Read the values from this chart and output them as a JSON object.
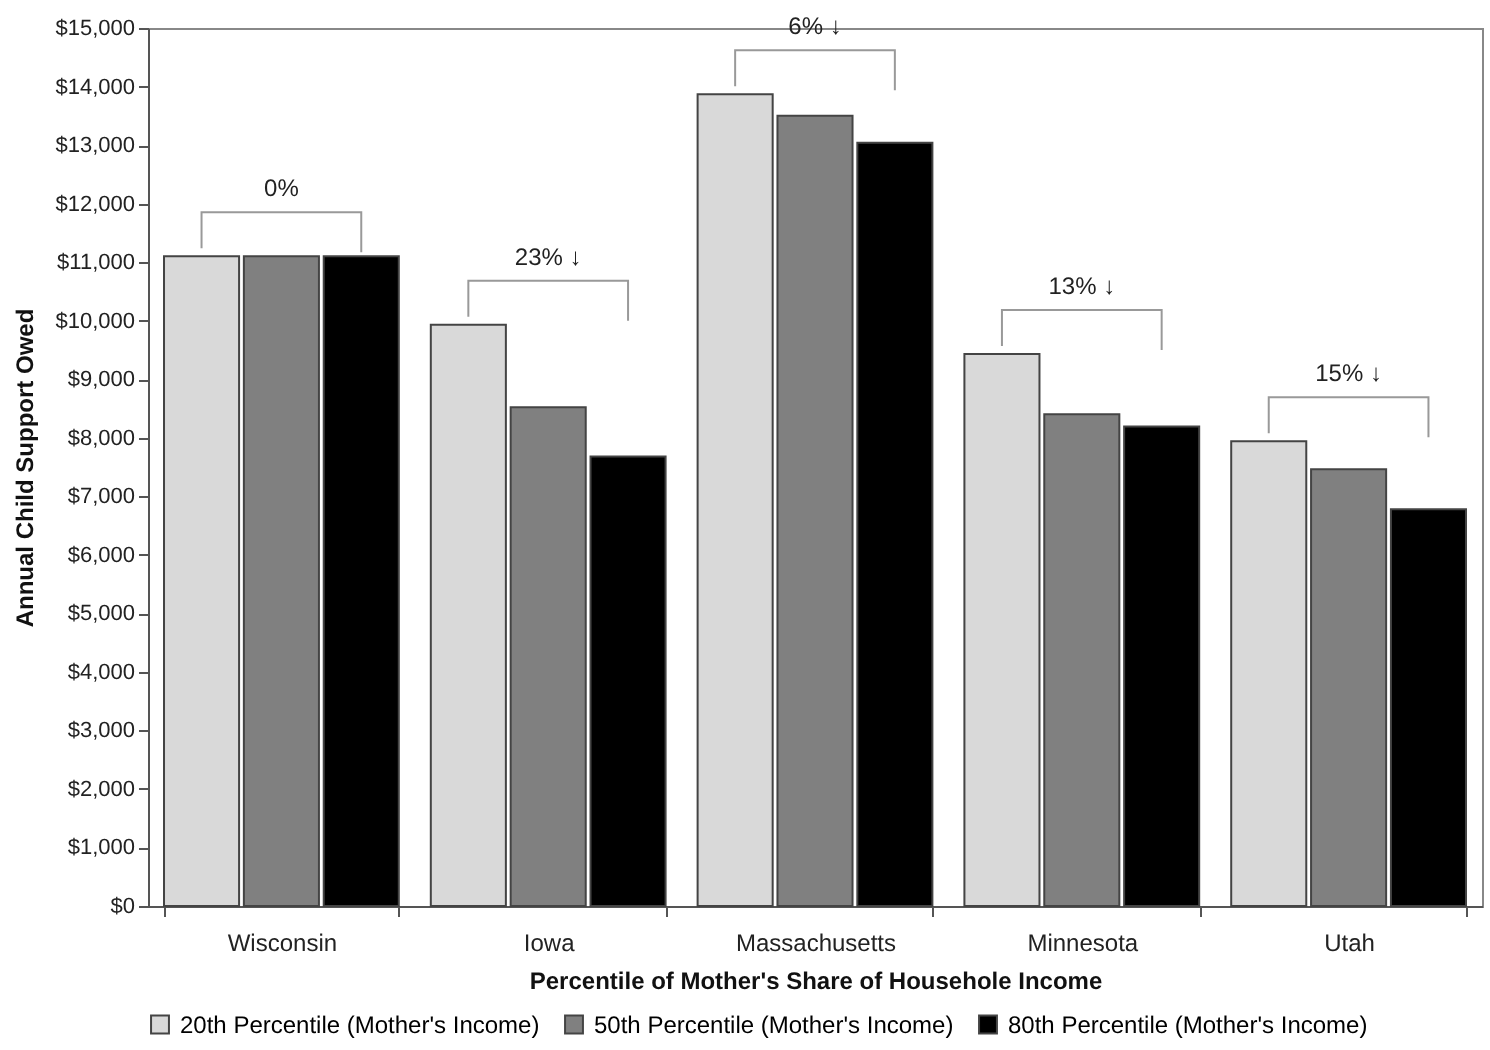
{
  "chart_data": {
    "type": "bar",
    "xlabel": "Percentile of Mother's Share of Househole Income",
    "ylabel": "Annual Child Support Owed",
    "categories": [
      "Wisconsin",
      "Iowa",
      "Massachusetts",
      "Minnesota",
      "Utah"
    ],
    "series": [
      {
        "name": "20th Percentile (Mother's Income)",
        "color": "#d9d9d9",
        "values": [
          11100,
          9930,
          13870,
          9430,
          7940
        ]
      },
      {
        "name": "50th Percentile (Mother's Income)",
        "color": "#808080",
        "values": [
          11100,
          8520,
          13500,
          8400,
          7460
        ]
      },
      {
        "name": "80th Percentile (Mother's Income)",
        "color": "#000000",
        "values": [
          11100,
          7680,
          13040,
          8190,
          6780
        ]
      }
    ],
    "ylim": [
      0,
      15000
    ],
    "yticks": [
      {
        "value": 0,
        "label": "$0"
      },
      {
        "value": 1000,
        "label": "$1,000"
      },
      {
        "value": 2000,
        "label": "$2,000"
      },
      {
        "value": 3000,
        "label": "$3,000"
      },
      {
        "value": 4000,
        "label": "$4,000"
      },
      {
        "value": 5000,
        "label": "$5,000"
      },
      {
        "value": 6000,
        "label": "$6,000"
      },
      {
        "value": 7000,
        "label": "$7,000"
      },
      {
        "value": 8000,
        "label": "$8,000"
      },
      {
        "value": 9000,
        "label": "$9,000"
      },
      {
        "value": 10000,
        "label": "$10,000"
      },
      {
        "value": 11000,
        "label": "$11,000"
      },
      {
        "value": 12000,
        "label": "$12,000"
      },
      {
        "value": 13000,
        "label": "$13,000"
      },
      {
        "value": 14000,
        "label": "$14,000"
      },
      {
        "value": 15000,
        "label": "$15,000"
      }
    ],
    "annotations": [
      "0%",
      "23% ↓",
      "6% ↓",
      "13% ↓",
      "15% ↓"
    ],
    "grid": false,
    "legend": "bottom"
  }
}
